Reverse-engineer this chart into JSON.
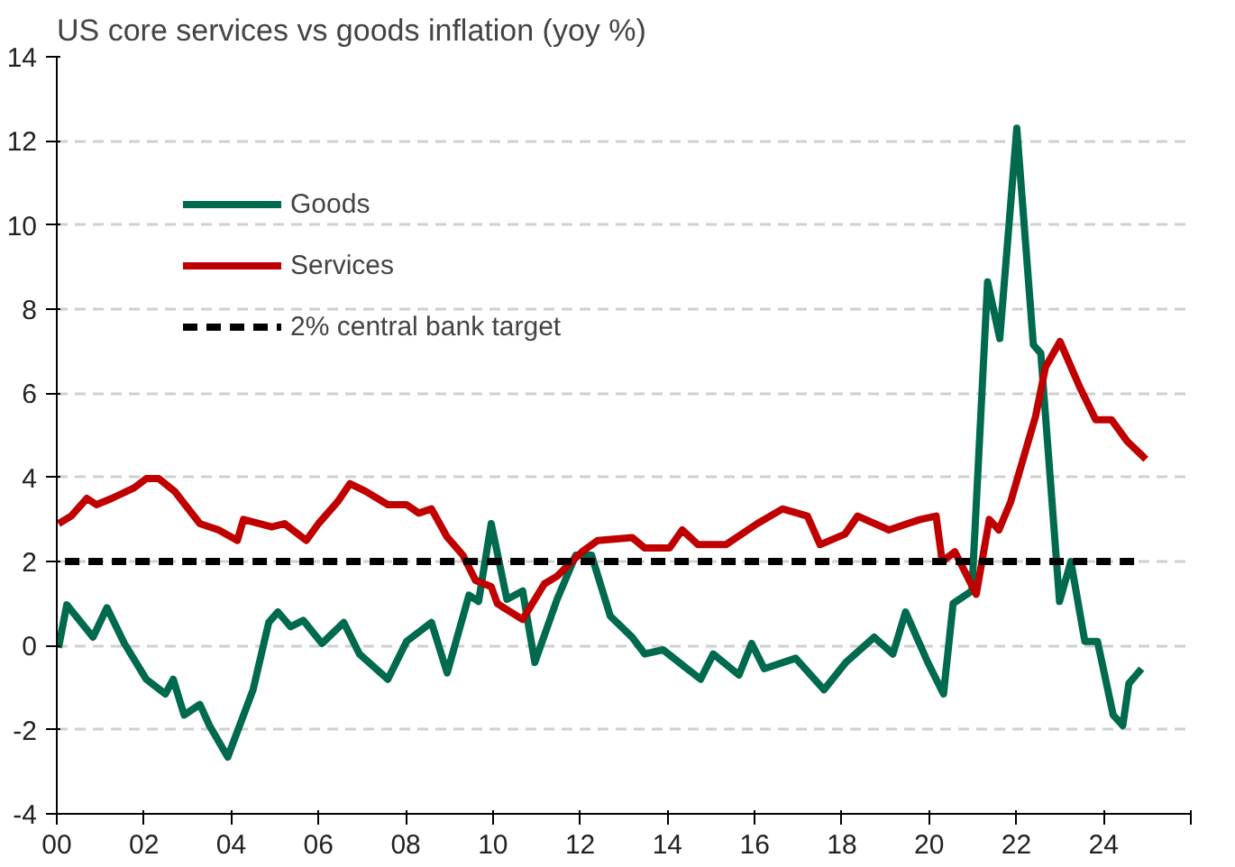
{
  "chart_data": {
    "type": "line",
    "title": "US core services vs goods inflation (yoy %)",
    "xlim": [
      2000,
      2026
    ],
    "ylim": [
      -4,
      14
    ],
    "xticks": [
      {
        "value": 2000,
        "label": "00"
      },
      {
        "value": 2002,
        "label": "02"
      },
      {
        "value": 2004,
        "label": "04"
      },
      {
        "value": 2006,
        "label": "06"
      },
      {
        "value": 2008,
        "label": "08"
      },
      {
        "value": 2010,
        "label": "10"
      },
      {
        "value": 2012,
        "label": "12"
      },
      {
        "value": 2014,
        "label": "14"
      },
      {
        "value": 2016,
        "label": "16"
      },
      {
        "value": 2018,
        "label": "18"
      },
      {
        "value": 2020,
        "label": "20"
      },
      {
        "value": 2022,
        "label": "22"
      },
      {
        "value": 2024,
        "label": "24"
      },
      {
        "value": 2026,
        "label": null
      }
    ],
    "yticks": [
      -4,
      -2,
      0,
      2,
      4,
      6,
      8,
      10,
      12,
      14
    ],
    "grid": "y",
    "legend": "top left",
    "series": [
      {
        "name": "Goods",
        "color": "#006a4e",
        "line_style": "solid",
        "x": [
          2000.04,
          2000.23,
          2000.83,
          2001.15,
          2001.55,
          2002.05,
          2002.49,
          2002.67,
          2002.92,
          2003.28,
          2003.5,
          2003.92,
          2004.5,
          2004.86,
          2005.07,
          2005.36,
          2005.65,
          2006.08,
          2006.58,
          2006.94,
          2007.59,
          2008.02,
          2008.59,
          2008.95,
          2009.45,
          2009.67,
          2009.96,
          2010.32,
          2010.68,
          2010.96,
          2011.47,
          2011.9,
          2012.26,
          2012.69,
          2013.19,
          2013.48,
          2013.9,
          2014.76,
          2015.05,
          2015.64,
          2015.93,
          2016.22,
          2016.94,
          2017.59,
          2018.09,
          2018.74,
          2019.17,
          2019.46,
          2019.97,
          2020.33,
          2020.55,
          2020.98,
          2021.34,
          2021.62,
          2022.01,
          2022.39,
          2022.56,
          2022.99,
          2023.25,
          2023.57,
          2023.86,
          2024.22,
          2024.44,
          2024.58,
          2024.87
        ],
        "values": [
          -0.05,
          0.97,
          0.2,
          0.9,
          0.05,
          -0.8,
          -1.15,
          -0.8,
          -1.65,
          -1.4,
          -1.9,
          -2.65,
          -1.05,
          0.55,
          0.8,
          0.45,
          0.6,
          0.05,
          0.55,
          -0.2,
          -0.8,
          0.1,
          0.55,
          -0.65,
          1.2,
          1.05,
          2.9,
          1.1,
          1.3,
          -0.4,
          1.1,
          2.15,
          2.15,
          0.7,
          0.2,
          -0.2,
          -0.1,
          -0.8,
          -0.2,
          -0.7,
          0.05,
          -0.55,
          -0.3,
          -1.05,
          -0.4,
          0.2,
          -0.2,
          0.8,
          -0.4,
          -1.15,
          1.0,
          1.3,
          8.65,
          7.3,
          12.3,
          7.15,
          6.95,
          1.05,
          2.0,
          0.1,
          0.1,
          -1.65,
          -1.9,
          -0.9,
          -0.55
        ]
      },
      {
        "name": "Services",
        "color": "#c00000",
        "line_style": "solid",
        "x": [
          2000.04,
          2000.33,
          2000.69,
          2000.91,
          2001.26,
          2001.77,
          2002.05,
          2002.34,
          2002.7,
          2003.28,
          2003.71,
          2004.14,
          2004.28,
          2004.93,
          2005.22,
          2005.72,
          2006.0,
          2006.44,
          2006.72,
          2007.08,
          2007.59,
          2008.02,
          2008.3,
          2008.59,
          2008.95,
          2009.31,
          2009.6,
          2009.96,
          2010.1,
          2010.25,
          2010.68,
          2011.18,
          2011.47,
          2012.04,
          2012.4,
          2013.19,
          2013.48,
          2014.05,
          2014.34,
          2014.7,
          2015.34,
          2016.06,
          2016.64,
          2017.21,
          2017.5,
          2018.07,
          2018.36,
          2019.08,
          2019.8,
          2020.16,
          2020.3,
          2020.59,
          2021.08,
          2021.38,
          2021.6,
          2021.87,
          2022.44,
          2022.67,
          2023.0,
          2023.46,
          2023.82,
          2024.18,
          2024.54,
          2024.97
        ],
        "values": [
          2.9,
          3.08,
          3.5,
          3.35,
          3.5,
          3.75,
          3.97,
          3.97,
          3.67,
          2.9,
          2.75,
          2.5,
          3.0,
          2.82,
          2.9,
          2.5,
          2.9,
          3.42,
          3.85,
          3.67,
          3.35,
          3.35,
          3.15,
          3.25,
          2.58,
          2.15,
          1.55,
          1.4,
          1.0,
          0.9,
          0.62,
          1.47,
          1.65,
          2.23,
          2.5,
          2.57,
          2.32,
          2.32,
          2.75,
          2.4,
          2.4,
          2.9,
          3.25,
          3.08,
          2.4,
          2.65,
          3.08,
          2.75,
          3.0,
          3.08,
          2.0,
          2.23,
          1.22,
          3.0,
          2.75,
          3.42,
          5.45,
          6.63,
          7.23,
          6.13,
          5.37,
          5.37,
          4.86,
          4.43
        ]
      },
      {
        "name": "2% central bank target",
        "color": "#000000",
        "line_style": "dashed",
        "x": [
          2000,
          2024.7
        ],
        "values": [
          2,
          2
        ]
      }
    ]
  }
}
